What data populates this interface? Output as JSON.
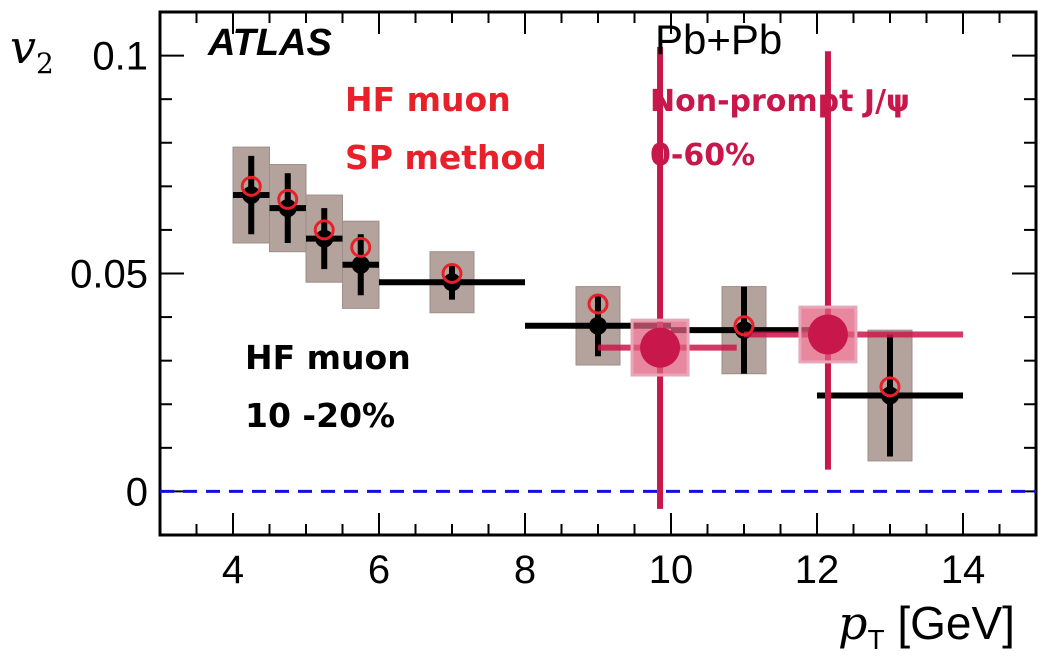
{
  "chart_data": {
    "type": "scatter",
    "experiment": "ATLAS",
    "system": "Pb+Pb",
    "xlabel": {
      "symbol": "p",
      "sub": "T",
      "unit": "[GeV]"
    },
    "ylabel": {
      "symbol": "v",
      "sub": "2"
    },
    "xlim": [
      3,
      15
    ],
    "ylim": [
      -0.01,
      0.11
    ],
    "x_ticks": [
      "4",
      "6",
      "8",
      "10",
      "12",
      "14"
    ],
    "y_ticks": [
      "0",
      "0.05",
      "0.1"
    ],
    "reference_line": {
      "y": 0,
      "style": "dashed",
      "color": "#1010e0"
    },
    "series": [
      {
        "name": "HF muon SP method",
        "labels": [
          "HF muon",
          "SP method"
        ],
        "color": "#e8202a",
        "marker": "open-circle",
        "points": [
          {
            "x": 4.25,
            "y": 0.07
          },
          {
            "x": 4.75,
            "y": 0.067
          },
          {
            "x": 5.25,
            "y": 0.06
          },
          {
            "x": 5.75,
            "y": 0.056
          },
          {
            "x": 7.0,
            "y": 0.05
          },
          {
            "x": 9.0,
            "y": 0.043
          },
          {
            "x": 11.0,
            "y": 0.038
          },
          {
            "x": 13.0,
            "y": 0.024
          }
        ]
      },
      {
        "name": "HF muon 10 -20%",
        "labels": [
          "HF muon",
          "10 -20%"
        ],
        "color": "#000000",
        "sys_color": "#b3a39c",
        "marker": "filled-circle",
        "points": [
          {
            "x": 4.25,
            "y": 0.068,
            "xlo": 4.0,
            "xhi": 4.5,
            "stat": 0.009,
            "sys": 0.011
          },
          {
            "x": 4.75,
            "y": 0.065,
            "xlo": 4.5,
            "xhi": 5.0,
            "stat": 0.008,
            "sys": 0.01
          },
          {
            "x": 5.25,
            "y": 0.058,
            "xlo": 5.0,
            "xhi": 5.5,
            "stat": 0.007,
            "sys": 0.01
          },
          {
            "x": 5.75,
            "y": 0.052,
            "xlo": 5.5,
            "xhi": 6.0,
            "stat": 0.007,
            "sys": 0.01
          },
          {
            "x": 7.0,
            "y": 0.048,
            "xlo": 6.0,
            "xhi": 8.0,
            "stat": 0.004,
            "sys": 0.007
          },
          {
            "x": 9.0,
            "y": 0.038,
            "xlo": 8.0,
            "xhi": 10.0,
            "stat": 0.007,
            "sys": 0.009
          },
          {
            "x": 11.0,
            "y": 0.037,
            "xlo": 10.0,
            "xhi": 12.0,
            "stat": 0.01,
            "sys": 0.01
          },
          {
            "x": 13.0,
            "y": 0.022,
            "xlo": 12.0,
            "xhi": 14.0,
            "stat": 0.014,
            "sys": 0.015
          }
        ]
      },
      {
        "name": "Non-prompt J/ψ 0-60%",
        "labels": [
          "Non-prompt J/ψ",
          "0-60%"
        ],
        "color": "#c8174a",
        "marker": "filled-square",
        "points": [
          {
            "x": 9.85,
            "y": 0.033,
            "xlo": 9.0,
            "xhi": 10.9,
            "stat_lo": 0.037,
            "stat_hi": 0.069,
            "sys": 0.004
          },
          {
            "x": 12.15,
            "y": 0.036,
            "xlo": 11.0,
            "xhi": 14.0,
            "stat_lo": 0.031,
            "stat_hi": 0.065,
            "sys": 0.004
          }
        ]
      }
    ],
    "grid": false
  }
}
